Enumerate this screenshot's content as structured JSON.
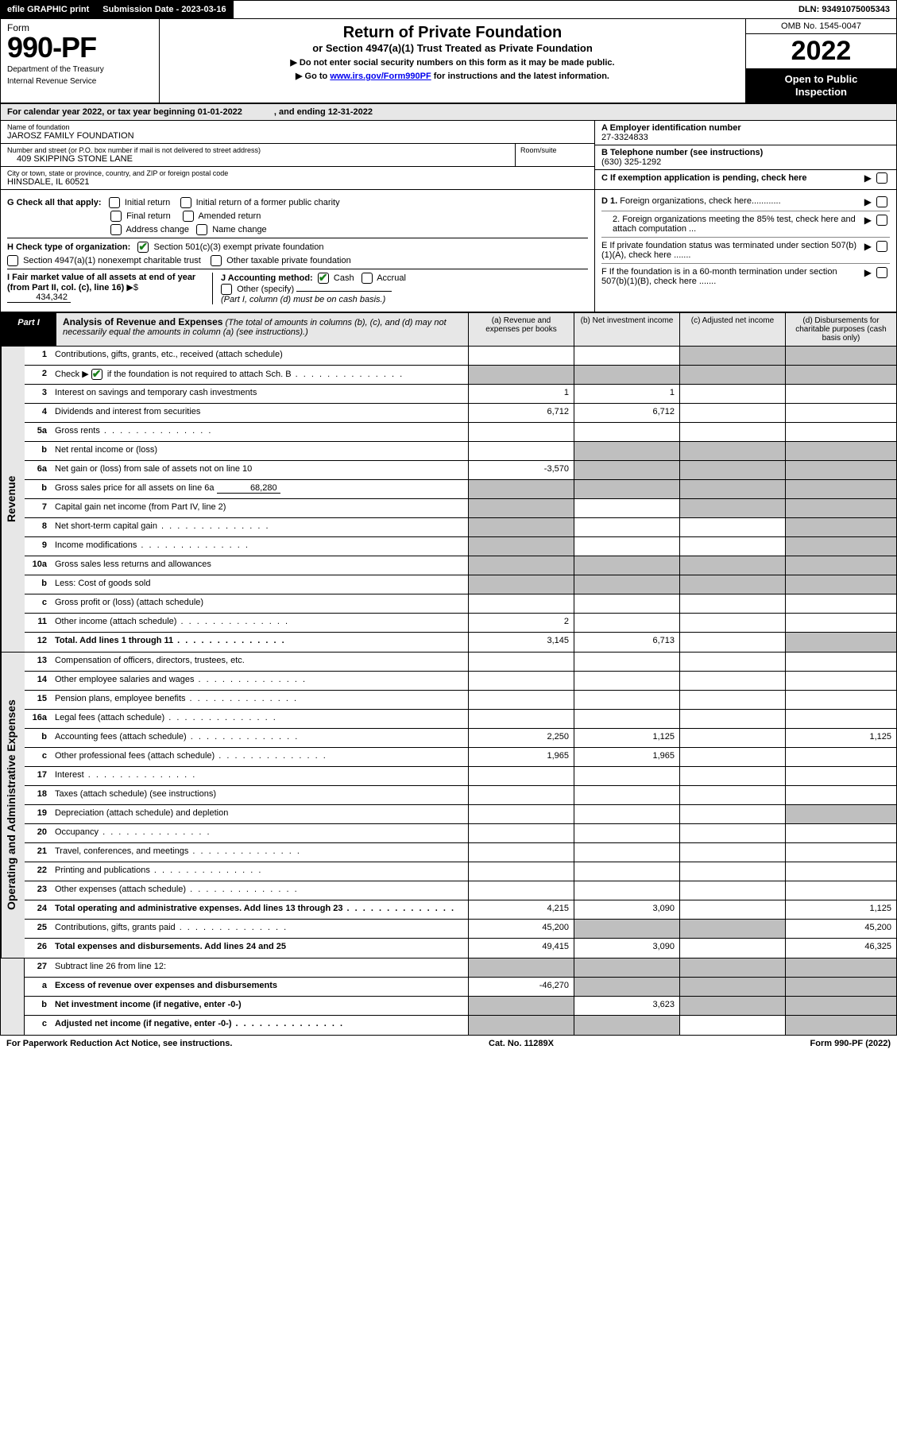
{
  "topbar": {
    "efile": "efile GRAPHIC print",
    "sub_label": "Submission Date - 2023-03-16",
    "dln": "DLN: 93491075005343"
  },
  "header": {
    "form_word": "Form",
    "form_no": "990-PF",
    "dept1": "Department of the Treasury",
    "dept2": "Internal Revenue Service",
    "title1": "Return of Private Foundation",
    "title2": "or Section 4947(a)(1) Trust Treated as Private Foundation",
    "instr1": "▶ Do not enter social security numbers on this form as it may be made public.",
    "instr2_a": "▶ Go to ",
    "instr2_link": "www.irs.gov/Form990PF",
    "instr2_b": " for instructions and the latest information.",
    "omb": "OMB No. 1545-0047",
    "year": "2022",
    "open1": "Open to Public",
    "open2": "Inspection"
  },
  "calyear": {
    "a": "For calendar year 2022, or tax year beginning 01-01-2022",
    "b": ", and ending 12-31-2022"
  },
  "entity": {
    "name_lbl": "Name of foundation",
    "name": "JAROSZ FAMILY FOUNDATION",
    "addr_lbl": "Number and street (or P.O. box number if mail is not delivered to street address)",
    "addr": "409 SKIPPING STONE LANE",
    "room_lbl": "Room/suite",
    "city_lbl": "City or town, state or province, country, and ZIP or foreign postal code",
    "city": "HINSDALE, IL  60521",
    "a_lbl": "A Employer identification number",
    "a_val": "27-3324833",
    "b_lbl": "B Telephone number (see instructions)",
    "b_val": "(630) 325-1292",
    "c_lbl": "C If exemption application is pending, check here"
  },
  "g": {
    "label": "G Check all that apply:",
    "opts": [
      "Initial return",
      "Initial return of a former public charity",
      "Final return",
      "Amended return",
      "Address change",
      "Name change"
    ]
  },
  "h": {
    "label": "H Check type of organization:",
    "opt1": "Section 501(c)(3) exempt private foundation",
    "opt2": "Section 4947(a)(1) nonexempt charitable trust",
    "opt3": "Other taxable private foundation"
  },
  "i": {
    "label_a": "I Fair market value of all assets at end of year (from Part II, col. (c), line 16)",
    "arrow": "▶$",
    "val": "434,342"
  },
  "j": {
    "label": "J Accounting method:",
    "cash": "Cash",
    "accrual": "Accrual",
    "other": "Other (specify)",
    "note": "(Part I, column (d) must be on cash basis.)"
  },
  "def": {
    "d1": "D 1. Foreign organizations, check here............",
    "d2": "2. Foreign organizations meeting the 85% test, check here and attach computation ...",
    "e": "E  If private foundation status was terminated under section 507(b)(1)(A), check here .......",
    "f": "F  If the foundation is in a 60-month termination under section 507(b)(1)(B), check here .......",
    "arrow": "▶"
  },
  "part1": {
    "label": "Part I",
    "title": "Analysis of Revenue and Expenses",
    "note": " (The total of amounts in columns (b), (c), and (d) may not necessarily equal the amounts in column (a) (see instructions).)",
    "col_a": "(a)   Revenue and expenses per books",
    "col_b": "(b)   Net investment income",
    "col_c": "(c)   Adjusted net income",
    "col_d": "(d)   Disbursements for charitable purposes (cash basis only)"
  },
  "sections": {
    "revenue": "Revenue",
    "opex": "Operating and Administrative Expenses"
  },
  "rows": {
    "r1": {
      "n": "1",
      "d": "Contributions, gifts, grants, etc., received (attach schedule)"
    },
    "r2": {
      "n": "2",
      "d": "Check ▶",
      "d2": " if the foundation is not required to attach Sch. B"
    },
    "r3": {
      "n": "3",
      "d": "Interest on savings and temporary cash investments",
      "a": "1",
      "b": "1"
    },
    "r4": {
      "n": "4",
      "d": "Dividends and interest from securities",
      "a": "6,712",
      "b": "6,712"
    },
    "r5a": {
      "n": "5a",
      "d": "Gross rents"
    },
    "r5b": {
      "n": "b",
      "d": "Net rental income or (loss)"
    },
    "r6a": {
      "n": "6a",
      "d": "Net gain or (loss) from sale of assets not on line 10",
      "a": "-3,570"
    },
    "r6b": {
      "n": "b",
      "d": "Gross sales price for all assets on line 6a",
      "inline": "68,280"
    },
    "r7": {
      "n": "7",
      "d": "Capital gain net income (from Part IV, line 2)"
    },
    "r8": {
      "n": "8",
      "d": "Net short-term capital gain"
    },
    "r9": {
      "n": "9",
      "d": "Income modifications"
    },
    "r10a": {
      "n": "10a",
      "d": "Gross sales less returns and allowances"
    },
    "r10b": {
      "n": "b",
      "d": "Less: Cost of goods sold"
    },
    "r10c": {
      "n": "c",
      "d": "Gross profit or (loss) (attach schedule)"
    },
    "r11": {
      "n": "11",
      "d": "Other income (attach schedule)",
      "a": "2"
    },
    "r12": {
      "n": "12",
      "d": "Total. Add lines 1 through 11",
      "a": "3,145",
      "b": "6,713",
      "bold": true
    },
    "r13": {
      "n": "13",
      "d": "Compensation of officers, directors, trustees, etc."
    },
    "r14": {
      "n": "14",
      "d": "Other employee salaries and wages"
    },
    "r15": {
      "n": "15",
      "d": "Pension plans, employee benefits"
    },
    "r16a": {
      "n": "16a",
      "d": "Legal fees (attach schedule)"
    },
    "r16b": {
      "n": "b",
      "d": "Accounting fees (attach schedule)",
      "a": "2,250",
      "b": "1,125",
      "dd": "1,125"
    },
    "r16c": {
      "n": "c",
      "d": "Other professional fees (attach schedule)",
      "a": "1,965",
      "b": "1,965"
    },
    "r17": {
      "n": "17",
      "d": "Interest"
    },
    "r18": {
      "n": "18",
      "d": "Taxes (attach schedule) (see instructions)"
    },
    "r19": {
      "n": "19",
      "d": "Depreciation (attach schedule) and depletion"
    },
    "r20": {
      "n": "20",
      "d": "Occupancy"
    },
    "r21": {
      "n": "21",
      "d": "Travel, conferences, and meetings"
    },
    "r22": {
      "n": "22",
      "d": "Printing and publications"
    },
    "r23": {
      "n": "23",
      "d": "Other expenses (attach schedule)"
    },
    "r24": {
      "n": "24",
      "d": "Total operating and administrative expenses. Add lines 13 through 23",
      "a": "4,215",
      "b": "3,090",
      "dd": "1,125",
      "bold": true
    },
    "r25": {
      "n": "25",
      "d": "Contributions, gifts, grants paid",
      "a": "45,200",
      "dd": "45,200"
    },
    "r26": {
      "n": "26",
      "d": "Total expenses and disbursements. Add lines 24 and 25",
      "a": "49,415",
      "b": "3,090",
      "dd": "46,325",
      "bold": true
    },
    "r27": {
      "n": "27",
      "d": "Subtract line 26 from line 12:"
    },
    "r27a": {
      "n": "a",
      "d": "Excess of revenue over expenses and disbursements",
      "a": "-46,270",
      "bold": true
    },
    "r27b": {
      "n": "b",
      "d": "Net investment income (if negative, enter -0-)",
      "b": "3,623",
      "bold": true
    },
    "r27c": {
      "n": "c",
      "d": "Adjusted net income (if negative, enter -0-)",
      "bold": true
    }
  },
  "footer": {
    "left": "For Paperwork Reduction Act Notice, see instructions.",
    "mid": "Cat. No. 11289X",
    "right": "Form 990-PF (2022)"
  }
}
